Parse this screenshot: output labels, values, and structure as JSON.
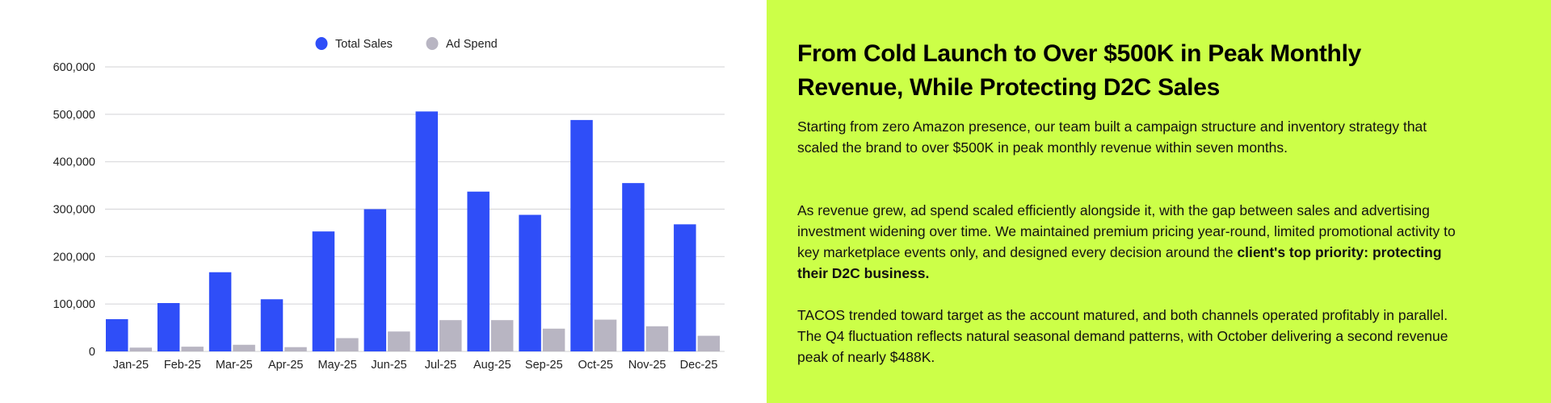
{
  "chart_data": {
    "type": "bar",
    "categories": [
      "Jan-25",
      "Feb-25",
      "Mar-25",
      "Apr-25",
      "May-25",
      "Jun-25",
      "Jul-25",
      "Aug-25",
      "Sep-25",
      "Oct-25",
      "Nov-25",
      "Dec-25"
    ],
    "series": [
      {
        "name": "Total Sales",
        "color": "#2f4ef8",
        "values": [
          68000,
          102000,
          167000,
          110000,
          253000,
          300000,
          506000,
          337000,
          288000,
          488000,
          355000,
          268000
        ]
      },
      {
        "name": "Ad Spend",
        "color": "#b8b5c2",
        "values": [
          8000,
          10000,
          14000,
          9000,
          28000,
          42000,
          66000,
          66000,
          48000,
          67000,
          53000,
          33000
        ]
      }
    ],
    "ylim": [
      0,
      600000
    ],
    "yticks": [
      0,
      100000,
      200000,
      300000,
      400000,
      500000,
      600000
    ],
    "ytick_labels": [
      "0",
      "100,000",
      "200,000",
      "300,000",
      "400,000",
      "500,000",
      "600,000"
    ],
    "grid": true,
    "legend": "top-center",
    "title": "",
    "xlabel": "",
    "ylabel": ""
  },
  "panel": {
    "background": "#ccff48",
    "title": "From Cold Launch to Over $500K in Peak Monthly Revenue, While Protecting D2C Sales",
    "p1": "Starting from zero Amazon presence, our team built a campaign structure and inventory strategy that scaled the brand to over $500K in peak monthly revenue within seven months.",
    "p2": "As revenue grew, ad spend scaled efficiently alongside it, with the gap between sales and advertising investment widening over time. We maintained premium pricing year-round, limited promotional activity to key marketplace events only, and designed every decision around the ",
    "p2_bold": "client's top priority: protecting their D2C business.",
    "p3": "TACOS trended toward target as the account matured, and both channels operated profitably in parallel. The Q4 fluctuation reflects natural seasonal demand patterns, with October delivering a second revenue peak of nearly $488K."
  }
}
